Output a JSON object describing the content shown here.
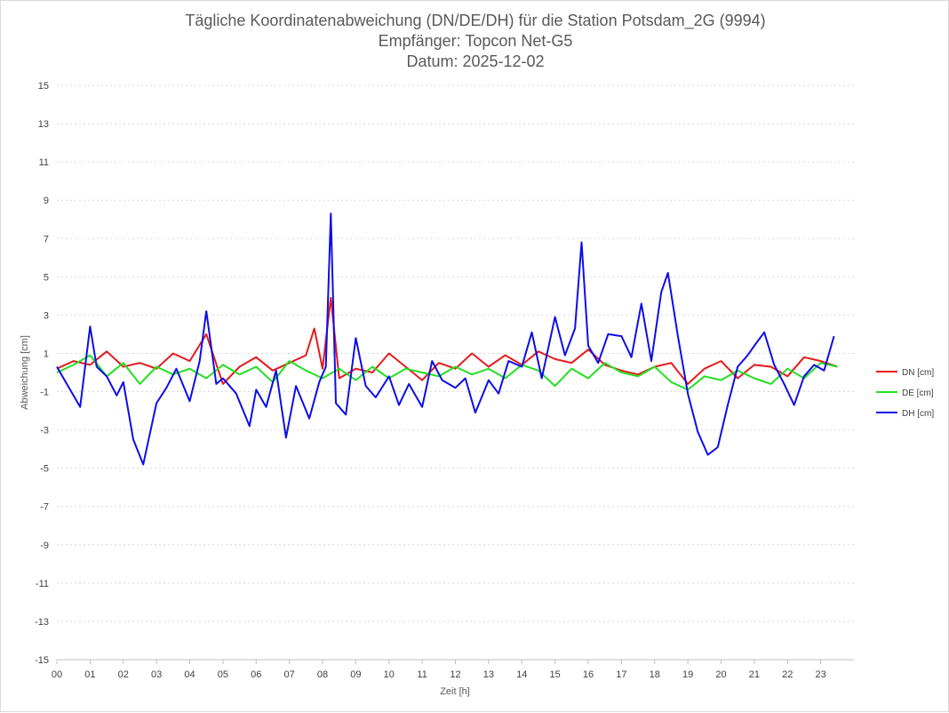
{
  "chart_data": {
    "type": "line",
    "title": "Tägliche Koordinatenabweichung (DN/DE/DH) für die Station Potsdam_2G (9994)",
    "subtitle": "Empfänger: Topcon Net-G5",
    "date_line": "Datum: 2025-12-02",
    "xlabel": "Zeit [h]",
    "ylabel": "Abweichung [cm]",
    "xlim": [
      0,
      24
    ],
    "ylim": [
      -15,
      15
    ],
    "x_ticks": [
      "00",
      "01",
      "02",
      "03",
      "04",
      "05",
      "06",
      "07",
      "08",
      "09",
      "10",
      "11",
      "12",
      "13",
      "14",
      "15",
      "16",
      "17",
      "18",
      "19",
      "20",
      "21",
      "22",
      "23"
    ],
    "y_ticks": [
      "15",
      "13",
      "11",
      "9",
      "7",
      "5",
      "3",
      "1",
      "-1",
      "-3",
      "-5",
      "-7",
      "-9",
      "-11",
      "-13",
      "-15"
    ],
    "y_tick_values": [
      15,
      13,
      11,
      9,
      7,
      5,
      3,
      1,
      -1,
      -3,
      -5,
      -7,
      -9,
      -11,
      -13,
      -15
    ],
    "grid": "horizontal-dotted",
    "legend_position": "right",
    "series": [
      {
        "name": "DN [cm]",
        "color": "#e6191c",
        "x": [
          0.0,
          0.5,
          1.0,
          1.5,
          2.0,
          2.5,
          3.0,
          3.5,
          4.0,
          4.5,
          5.0,
          5.5,
          6.0,
          6.5,
          7.0,
          7.5,
          7.75,
          8.0,
          8.25,
          8.5,
          9.0,
          9.5,
          10.0,
          10.5,
          11.0,
          11.5,
          12.0,
          12.5,
          13.0,
          13.5,
          14.0,
          14.5,
          15.0,
          15.5,
          16.0,
          16.5,
          17.0,
          17.5,
          18.0,
          18.5,
          19.0,
          19.5,
          20.0,
          20.5,
          21.0,
          21.5,
          22.0,
          22.5,
          23.0,
          23.5
        ],
        "y": [
          0.2,
          0.6,
          0.4,
          1.1,
          0.3,
          0.5,
          0.2,
          1.0,
          0.6,
          2.0,
          -0.6,
          0.3,
          0.8,
          0.1,
          0.5,
          0.9,
          2.3,
          0.2,
          3.9,
          -0.3,
          0.2,
          0.0,
          1.0,
          0.3,
          -0.4,
          0.5,
          0.2,
          1.0,
          0.3,
          0.9,
          0.4,
          1.1,
          0.7,
          0.5,
          1.2,
          0.4,
          0.1,
          -0.1,
          0.3,
          0.5,
          -0.6,
          0.2,
          0.6,
          -0.3,
          0.4,
          0.3,
          -0.2,
          0.8,
          0.6,
          0.3
        ]
      },
      {
        "name": "DE [cm]",
        "color": "#21e021",
        "x": [
          0.0,
          0.5,
          1.0,
          1.5,
          2.0,
          2.5,
          3.0,
          3.5,
          4.0,
          4.5,
          5.0,
          5.5,
          6.0,
          6.5,
          7.0,
          7.5,
          8.0,
          8.5,
          9.0,
          9.5,
          10.0,
          10.5,
          11.0,
          11.5,
          12.0,
          12.5,
          13.0,
          13.5,
          14.0,
          14.5,
          15.0,
          15.5,
          16.0,
          16.5,
          17.0,
          17.5,
          18.0,
          18.5,
          19.0,
          19.5,
          20.0,
          20.5,
          21.0,
          21.5,
          22.0,
          22.5,
          23.0,
          23.5
        ],
        "y": [
          0.0,
          0.4,
          0.9,
          -0.2,
          0.5,
          -0.6,
          0.3,
          -0.1,
          0.2,
          -0.3,
          0.4,
          -0.1,
          0.3,
          -0.5,
          0.6,
          0.1,
          -0.3,
          0.2,
          -0.4,
          0.3,
          -0.3,
          0.2,
          0.0,
          -0.2,
          0.3,
          -0.1,
          0.2,
          -0.3,
          0.4,
          0.1,
          -0.7,
          0.2,
          -0.3,
          0.5,
          0.0,
          -0.2,
          0.3,
          -0.5,
          -0.9,
          -0.2,
          -0.4,
          0.1,
          -0.3,
          -0.6,
          0.2,
          -0.3,
          0.5,
          0.3
        ]
      },
      {
        "name": "DH [cm]",
        "color": "#0d0de8",
        "x": [
          0.0,
          0.3,
          0.7,
          1.0,
          1.2,
          1.5,
          1.8,
          2.0,
          2.3,
          2.6,
          3.0,
          3.3,
          3.6,
          4.0,
          4.3,
          4.5,
          4.8,
          5.0,
          5.4,
          5.8,
          6.0,
          6.3,
          6.6,
          6.9,
          7.2,
          7.6,
          7.9,
          8.1,
          8.25,
          8.4,
          8.7,
          9.0,
          9.3,
          9.6,
          10.0,
          10.3,
          10.6,
          11.0,
          11.3,
          11.6,
          12.0,
          12.3,
          12.6,
          13.0,
          13.3,
          13.6,
          14.0,
          14.3,
          14.6,
          15.0,
          15.3,
          15.6,
          15.8,
          16.0,
          16.3,
          16.6,
          17.0,
          17.3,
          17.6,
          17.9,
          18.2,
          18.4,
          18.7,
          19.0,
          19.3,
          19.6,
          19.9,
          20.2,
          20.5,
          20.8,
          21.0,
          21.3,
          21.6,
          21.9,
          22.2,
          22.5,
          22.8,
          23.1,
          23.4
        ],
        "y": [
          0.3,
          -0.6,
          -1.8,
          2.4,
          0.3,
          -0.2,
          -1.2,
          -0.5,
          -3.5,
          -4.8,
          -1.6,
          -0.8,
          0.2,
          -1.5,
          0.6,
          3.2,
          -0.6,
          -0.3,
          -1.1,
          -2.8,
          -0.9,
          -1.8,
          0.1,
          -3.4,
          -0.7,
          -2.4,
          -0.5,
          0.3,
          8.3,
          -1.6,
          -2.2,
          1.8,
          -0.7,
          -1.3,
          -0.2,
          -1.7,
          -0.6,
          -1.8,
          0.6,
          -0.4,
          -0.8,
          -0.3,
          -2.1,
          -0.4,
          -1.1,
          0.6,
          0.3,
          2.1,
          -0.3,
          2.9,
          0.9,
          2.3,
          6.8,
          1.4,
          0.5,
          2.0,
          1.9,
          0.8,
          3.6,
          0.6,
          4.2,
          5.2,
          1.9,
          -1.1,
          -3.1,
          -4.3,
          -3.9,
          -1.7,
          0.3,
          0.9,
          1.4,
          2.1,
          0.4,
          -0.6,
          -1.7,
          -0.2,
          0.4,
          0.1,
          1.9
        ]
      }
    ]
  }
}
